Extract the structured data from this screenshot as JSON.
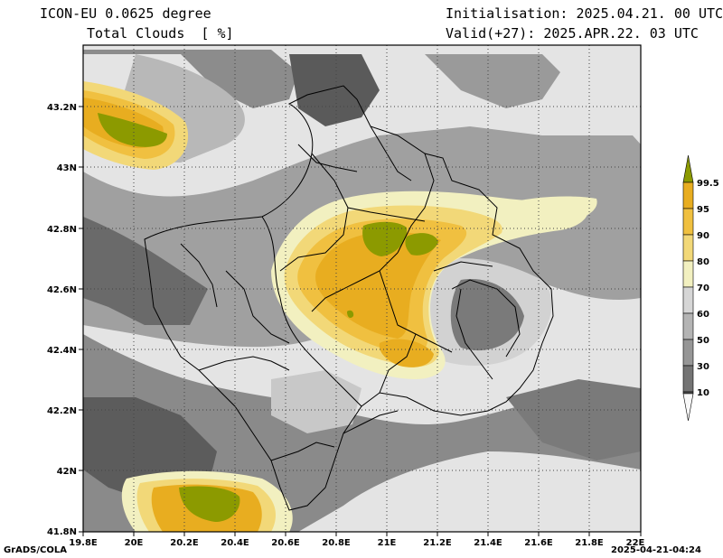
{
  "header": {
    "title_line1": "ICON-EU 0.0625 degree",
    "title_line2": "Total Clouds  [ %]",
    "init_line": "Initialisation: 2025.04.21. 00 UTC",
    "valid_line": "Valid(+27): 2025.APR.22. 03 UTC"
  },
  "footer": {
    "credit": "GrADS/COLA",
    "timestamp": "2025-04-21-04:24"
  },
  "map": {
    "lon_labels": [
      "19.8E",
      "20E",
      "20.2E",
      "20.4E",
      "20.6E",
      "20.8E",
      "21E",
      "21.2E",
      "21.4E",
      "21.6E",
      "21.8E",
      "22E"
    ],
    "lat_labels": [
      "43.2N",
      "43N",
      "42.8N",
      "42.6N",
      "42.4N",
      "42.2N",
      "42N",
      "41.8N"
    ]
  },
  "colorbar": {
    "levels": [
      "99.5",
      "95",
      "90",
      "80",
      "70",
      "60",
      "50",
      "30",
      "10"
    ],
    "colors": [
      "#8c9a00",
      "#e8ad20",
      "#f0c040",
      "#f2d878",
      "#f2f0c0",
      "#d6d6d6",
      "#b4b4b4",
      "#969696",
      "#747474",
      "#565656",
      "#f8f8f8"
    ]
  }
}
